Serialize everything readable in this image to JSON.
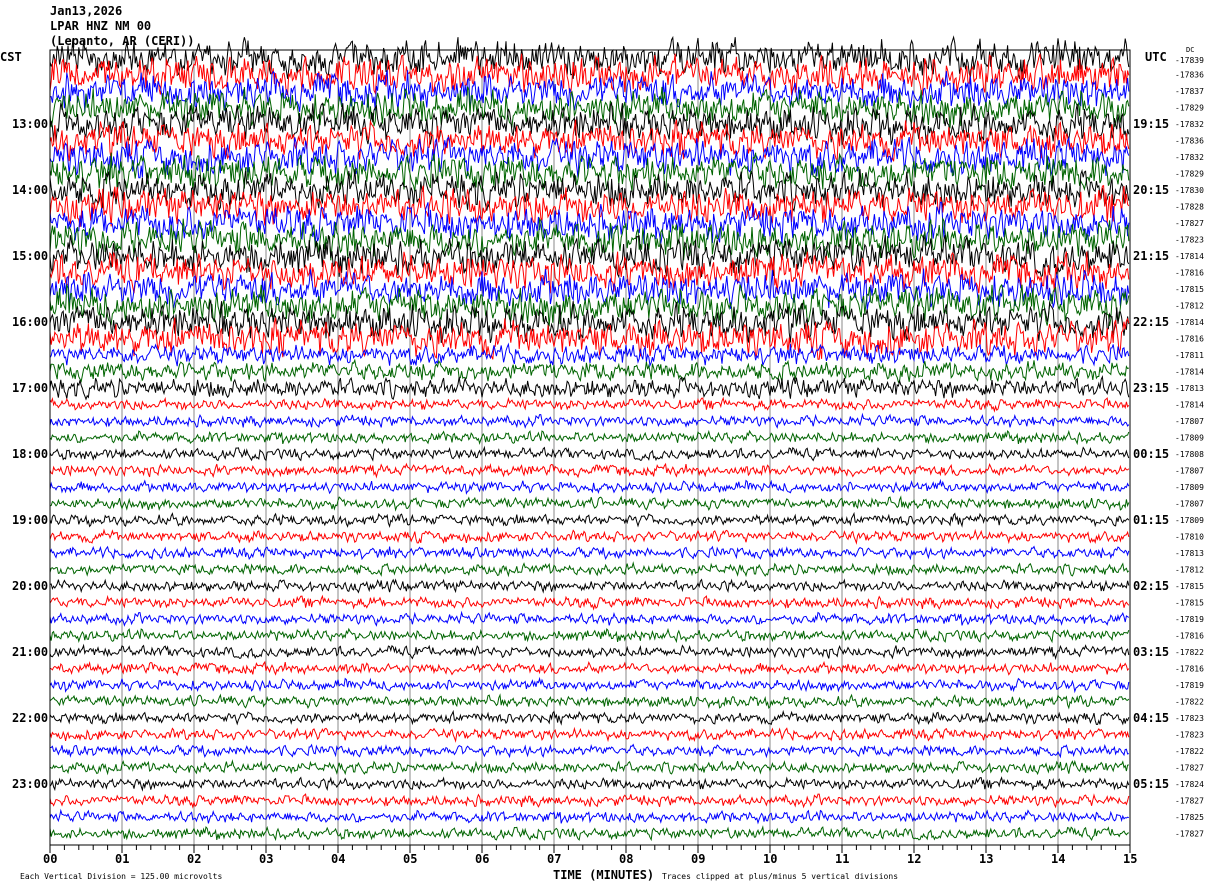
{
  "header": {
    "date": "Jan13,2026",
    "station": "LPAR HNZ NM 00",
    "location": "(Lepanto, AR (CERI))"
  },
  "chart_data": {
    "type": "line",
    "title": "",
    "xlabel": "TIME (MINUTES)",
    "xlim": [
      0,
      15
    ],
    "x_ticks": [
      "00",
      "01",
      "02",
      "03",
      "04",
      "05",
      "06",
      "07",
      "08",
      "09",
      "10",
      "11",
      "12",
      "13",
      "14",
      "15"
    ],
    "left_timezone": "CST",
    "right_timezone": "UTC",
    "dc_label": "DC",
    "left_hour_labels": [
      "13:00",
      "14:00",
      "15:00",
      "16:00",
      "17:00",
      "18:00",
      "19:00",
      "20:00",
      "21:00",
      "22:00",
      "23:00"
    ],
    "right_hour_labels": [
      "19:15",
      "20:15",
      "21:15",
      "22:15",
      "23:15",
      "00:15",
      "01:15",
      "02:15",
      "03:15",
      "04:15",
      "05:15"
    ],
    "trace_colors": [
      "#000000",
      "#ff0000",
      "#0000ff",
      "#006400"
    ],
    "trace_dc_offsets": [
      -17839,
      -17836,
      -17837,
      -17829,
      -17832,
      -17836,
      -17832,
      -17829,
      -17830,
      -17828,
      -17827,
      -17823,
      -17814,
      -17816,
      -17815,
      -17812,
      -17814,
      -17816,
      -17811,
      -17814,
      -17813,
      -17814,
      -17807,
      -17809,
      -17808,
      -17807,
      -17809,
      -17807,
      -17809,
      -17810,
      -17813,
      -17812,
      -17815,
      -17815,
      -17819,
      -17816,
      -17822,
      -17816,
      -17819,
      -17822,
      -17823,
      -17823,
      -17822,
      -17827,
      -17824,
      -17827,
      -17825,
      -17827
    ],
    "vertical_division_note": "Each Vertical Division =  125.00 microvolts",
    "clip_note": "Traces clipped at plus/minus 5 vertical divisions"
  }
}
